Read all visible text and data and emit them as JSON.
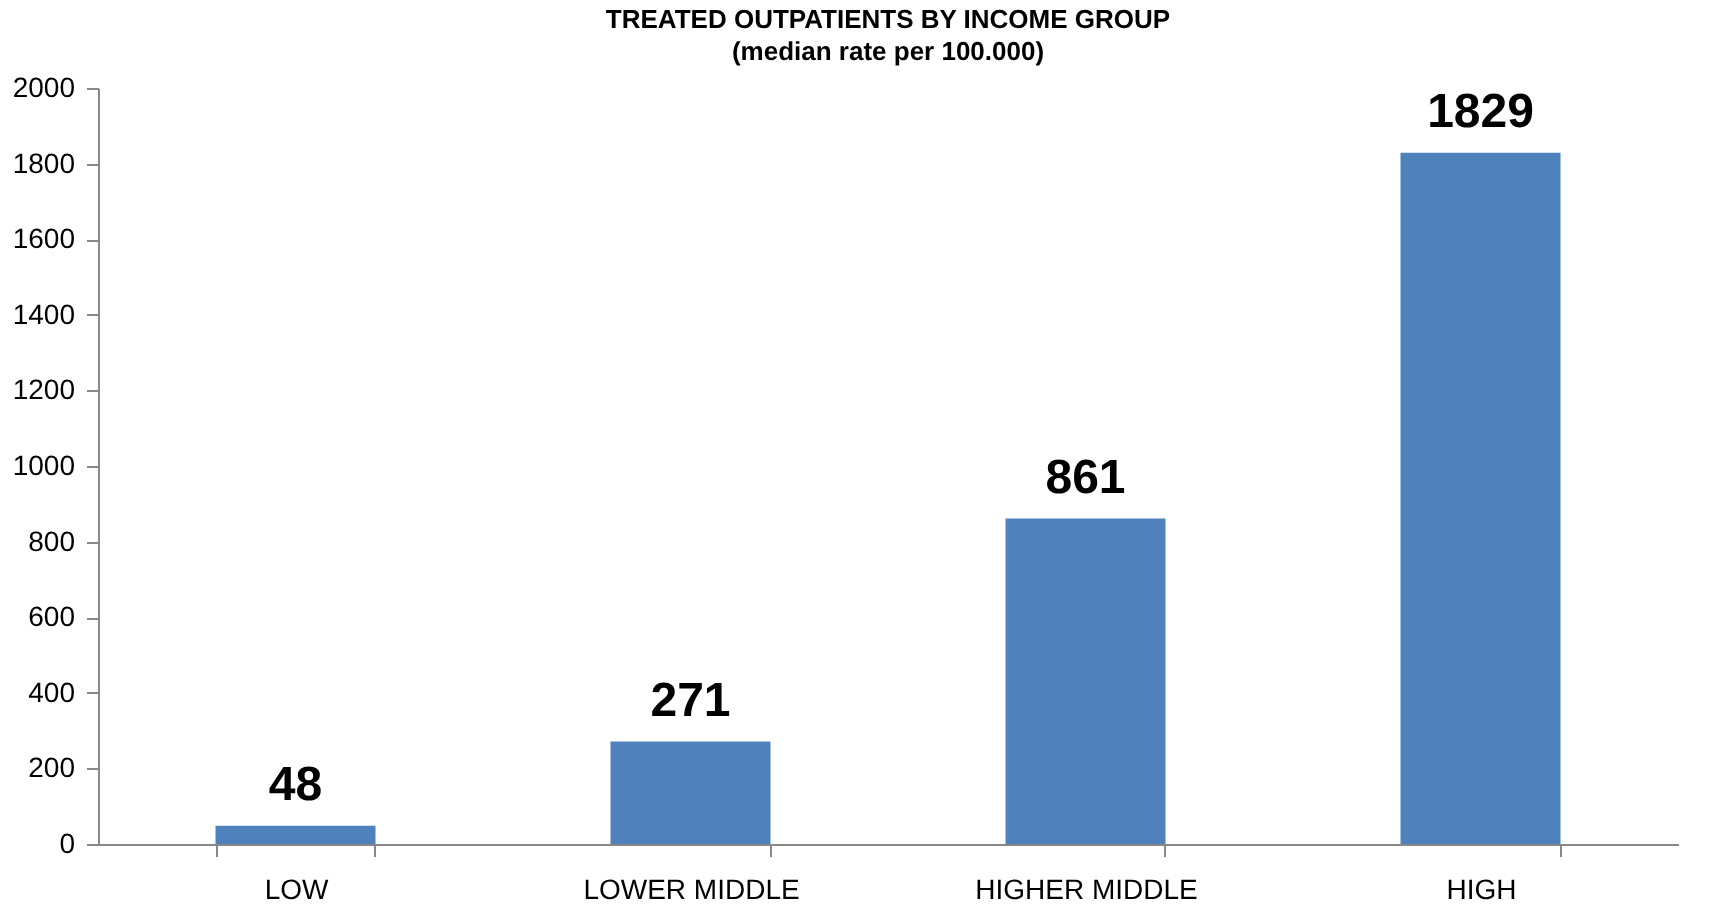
{
  "chart_data": {
    "type": "bar",
    "title": "TREATED OUTPATIENTS  BY INCOME GROUP",
    "subtitle": "(median rate per 100.000)",
    "categories": [
      "LOW",
      "LOWER MIDDLE",
      "HIGHER MIDDLE",
      "HIGH"
    ],
    "values": [
      48,
      271,
      861,
      1829
    ],
    "color": "#4f81bd",
    "ylim": [
      0,
      2000
    ],
    "yticks": [
      0,
      200,
      400,
      600,
      800,
      1000,
      1200,
      1400,
      1600,
      1800,
      2000
    ],
    "grid": false,
    "data_labels": true
  }
}
